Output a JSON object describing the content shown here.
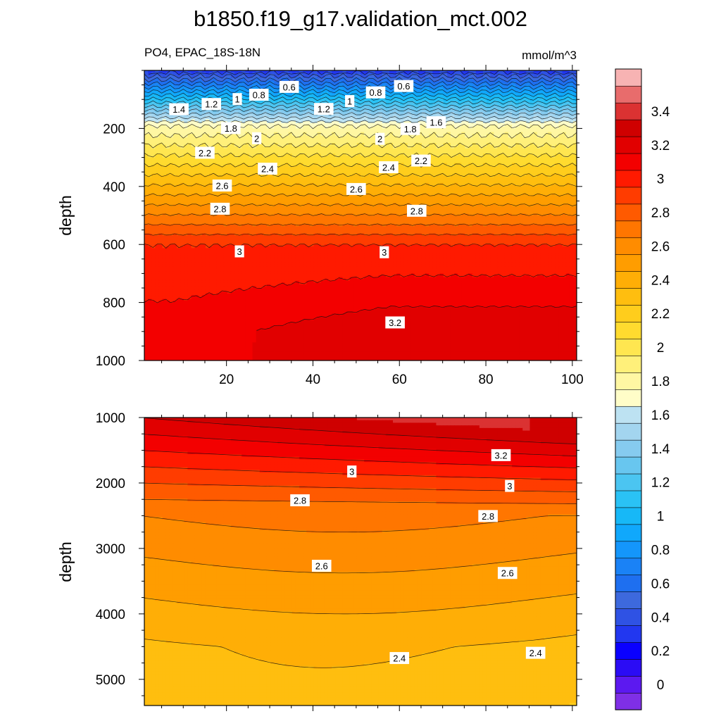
{
  "chart_data": {
    "type": "heatmap",
    "title": "b1850.f19_g17.validation_mct.002",
    "variable": "PO4, EPAC_18S-18N",
    "units": "mmol/m^3",
    "colorbar": {
      "levels": [
        -0.1,
        0,
        0.1,
        0.2,
        0.3,
        0.4,
        0.5,
        0.6,
        0.7,
        0.8,
        0.9,
        1.0,
        1.1,
        1.2,
        1.3,
        1.4,
        1.5,
        1.6,
        1.7,
        1.8,
        1.9,
        2.0,
        2.1,
        2.2,
        2.3,
        2.4,
        2.5,
        2.6,
        2.7,
        2.8,
        2.9,
        3.0,
        3.1,
        3.2,
        3.3,
        3.4,
        3.5,
        3.6
      ],
      "colors": [
        "#7f2fe6",
        "#5c19f0",
        "#2b0cf5",
        "#0a00ff",
        "#2237f0",
        "#2f52e4",
        "#3d69dd",
        "#1e6ff0",
        "#1a82f6",
        "#1496fb",
        "#10a8fc",
        "#17b8f7",
        "#2ac2f5",
        "#4bc5f1",
        "#68c6ef",
        "#86cbef",
        "#a3d5ef",
        "#bde2f2",
        "#fffdc8",
        "#fff7a3",
        "#fff07a",
        "#ffe650",
        "#ffdb2f",
        "#ffcd1c",
        "#ffbe0f",
        "#ffae06",
        "#ff9d00",
        "#ff8c00",
        "#ff7600",
        "#ff5a00",
        "#ff3c00",
        "#ff1a00",
        "#f30000",
        "#e10000",
        "#cf0000",
        "#db3232",
        "#e86c6c",
        "#f7b3b3"
      ],
      "tick_labels": [
        "0",
        "0.2",
        "0.4",
        "0.6",
        "0.8",
        "1",
        "1.2",
        "1.4",
        "1.6",
        "1.8",
        "2",
        "2.2",
        "2.4",
        "2.6",
        "2.8",
        "3",
        "3.2",
        "3.4"
      ]
    },
    "panels": [
      {
        "name": "upper",
        "xlim": [
          1,
          101
        ],
        "ylim": [
          0,
          1000
        ],
        "yreverse": true,
        "x_ticks": [
          20,
          40,
          60,
          80,
          100
        ],
        "x_tick_labels": [
          "20",
          "40",
          "60",
          "80",
          "100"
        ],
        "y_ticks": [
          200,
          400,
          600,
          800,
          1000
        ],
        "y_tick_labels": [
          "200",
          "400",
          "600",
          "800",
          "1000"
        ],
        "ylabel": "depth",
        "contour_labels": [
          {
            "text": "1.4",
            "x": 9,
            "y": 135
          },
          {
            "text": "1.2",
            "x": 16.5,
            "y": 117
          },
          {
            "text": "1",
            "x": 22.5,
            "y": 100
          },
          {
            "text": "0.8",
            "x": 27.5,
            "y": 85
          },
          {
            "text": "0.6",
            "x": 34.5,
            "y": 58
          },
          {
            "text": "1.2",
            "x": 42.5,
            "y": 134
          },
          {
            "text": "1",
            "x": 48.5,
            "y": 107
          },
          {
            "text": "0.8",
            "x": 54.5,
            "y": 77
          },
          {
            "text": "0.6",
            "x": 61,
            "y": 55
          },
          {
            "text": "1.6",
            "x": 68.5,
            "y": 180
          },
          {
            "text": "1.8",
            "x": 21,
            "y": 200
          },
          {
            "text": "2",
            "x": 27,
            "y": 235
          },
          {
            "text": "1.8",
            "x": 62.5,
            "y": 203
          },
          {
            "text": "2",
            "x": 55.5,
            "y": 237
          },
          {
            "text": "2.2",
            "x": 15,
            "y": 285
          },
          {
            "text": "2.2",
            "x": 65,
            "y": 312
          },
          {
            "text": "2.4",
            "x": 29.5,
            "y": 340
          },
          {
            "text": "2.4",
            "x": 57.5,
            "y": 335
          },
          {
            "text": "2.6",
            "x": 19,
            "y": 398
          },
          {
            "text": "2.6",
            "x": 50,
            "y": 410
          },
          {
            "text": "2.8",
            "x": 18.5,
            "y": 478
          },
          {
            "text": "2.8",
            "x": 64,
            "y": 485
          },
          {
            "text": "3",
            "x": 23,
            "y": 625
          },
          {
            "text": "3",
            "x": 56.5,
            "y": 628
          },
          {
            "text": "3.2",
            "x": 59,
            "y": 870
          }
        ]
      },
      {
        "name": "lower",
        "xlim": [
          1,
          101
        ],
        "ylim": [
          1000,
          5400
        ],
        "yreverse": true,
        "x_ticks": [
          20,
          40,
          60,
          80,
          100
        ],
        "y_ticks": [
          1000,
          2000,
          3000,
          4000,
          5000
        ],
        "y_tick_labels": [
          "1000",
          "2000",
          "3000",
          "4000",
          "5000"
        ],
        "ylabel": "depth",
        "contour_labels": [
          {
            "text": "3.2",
            "x": 83.5,
            "y": 1580
          },
          {
            "text": "3",
            "x": 49,
            "y": 1830
          },
          {
            "text": "3",
            "x": 85.5,
            "y": 2050
          },
          {
            "text": "2.8",
            "x": 37,
            "y": 2270
          },
          {
            "text": "2.8",
            "x": 80.5,
            "y": 2510
          },
          {
            "text": "2.6",
            "x": 42,
            "y": 3270
          },
          {
            "text": "2.6",
            "x": 85,
            "y": 3380
          },
          {
            "text": "2.4",
            "x": 60,
            "y": 4680
          },
          {
            "text": "2.4",
            "x": 91.5,
            "y": 4600
          }
        ]
      }
    ]
  }
}
